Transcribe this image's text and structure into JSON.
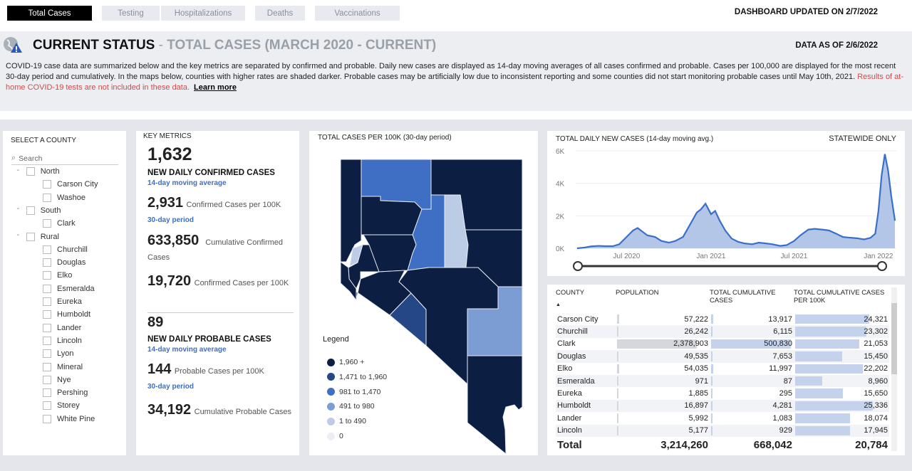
{
  "tabs": [
    {
      "label": "Total Cases",
      "active": true
    },
    {
      "label": "Testing"
    },
    {
      "label": "Hospitalizations"
    },
    {
      "label": "Deaths"
    },
    {
      "label": "Vaccinations"
    }
  ],
  "updated": "DASHBOARD UPDATED ON 2/7/2022",
  "header": {
    "title": "CURRENT STATUS",
    "separator": "-",
    "subtitle": "TOTAL CASES (MARCH 2020 - CURRENT)",
    "data_as_of": "DATA AS OF 2/6/2022",
    "description": "COVID-19 case data are summarized below and the key metrics are separated by confirmed and probable. Daily new cases are displayed as 14-day moving averages of all cases confirmed and probable. Cases per 100,000 are displayed for the most recent 30-day period and cumulatively. In the maps below, counties with higher rates are shaded darker. Probable cases may be artificially low due to inconsistent reporting and some counties did not start monitoring probable cases until May 10th, 2021.",
    "warning": "Results of at-home COVID-19 tests are not included in these data.",
    "learn_more": "Learn more"
  },
  "county_filter": {
    "title": "SELECT A COUNTY",
    "search_placeholder": "Search",
    "groups": [
      {
        "name": "North",
        "counties": [
          "Carson City",
          "Washoe"
        ]
      },
      {
        "name": "South",
        "counties": [
          "Clark"
        ]
      },
      {
        "name": "Rural",
        "counties": [
          "Churchill",
          "Douglas",
          "Elko",
          "Esmeralda",
          "Eureka",
          "Humboldt",
          "Lander",
          "Lincoln",
          "Lyon",
          "Mineral",
          "Nye",
          "Pershing",
          "Storey",
          "White Pine"
        ]
      }
    ]
  },
  "key_metrics": {
    "title": "KEY METRICS",
    "daily_confirmed": "1,632",
    "daily_confirmed_label": "NEW DAILY CONFIRMED CASES",
    "moving_avg": "14-day moving average",
    "confirmed_per100k_30": "2,931",
    "confirmed_per100k_30_label": "Confirmed Cases per 100K",
    "period": "30-day period",
    "cumulative_confirmed": "633,850",
    "cumulative_confirmed_label": "Cumulative Confirmed Cases",
    "cumulative_per100k": "19,720",
    "cumulative_per100k_label": "Confirmed Cases per 100K",
    "daily_probable": "89",
    "daily_probable_label": "NEW DAILY PROBABLE CASES",
    "probable_per100k": "144",
    "probable_per100k_label": "Probable Cases per 100K",
    "cumulative_probable": "34,192",
    "cumulative_probable_label": "Cumulative Probable Cases"
  },
  "map": {
    "title": "TOTAL CASES PER 100K (30-day period)",
    "legend_title": "Legend",
    "legend": [
      {
        "label": "1,960 +",
        "color": "#0c1f42"
      },
      {
        "label": "1,471 to 1,960",
        "color": "#264785"
      },
      {
        "label": "981 to 1,470",
        "color": "#3e6fc4"
      },
      {
        "label": "491 to 980",
        "color": "#7c9dd4"
      },
      {
        "label": "1 to 490",
        "color": "#bccbe6"
      },
      {
        "label": "0",
        "color": "#eceef3"
      }
    ]
  },
  "chart_data": {
    "type": "area",
    "title": "TOTAL DAILY NEW CASES (14-day moving avg.)",
    "note": "STATEWIDE ONLY",
    "xlabel": "",
    "ylabel": "",
    "ylim": [
      0,
      6000
    ],
    "yticks": [
      "0K",
      "2K",
      "4K",
      "6K"
    ],
    "xticks": [
      "Jul 2020",
      "Jan 2021",
      "Jul 2021",
      "Jan 2022"
    ],
    "color": "#3a6fc8",
    "grid": true,
    "x": [
      "2020-03-15",
      "2020-04-01",
      "2020-04-15",
      "2020-05-01",
      "2020-05-15",
      "2020-06-01",
      "2020-06-15",
      "2020-07-01",
      "2020-07-15",
      "2020-07-25",
      "2020-08-01",
      "2020-08-15",
      "2020-09-01",
      "2020-09-15",
      "2020-10-01",
      "2020-10-15",
      "2020-11-01",
      "2020-11-15",
      "2020-12-01",
      "2020-12-10",
      "2020-12-20",
      "2021-01-01",
      "2021-01-10",
      "2021-01-20",
      "2021-02-01",
      "2021-02-15",
      "2021-03-01",
      "2021-03-15",
      "2021-04-01",
      "2021-04-15",
      "2021-05-01",
      "2021-05-15",
      "2021-06-01",
      "2021-06-15",
      "2021-07-01",
      "2021-07-15",
      "2021-08-01",
      "2021-08-15",
      "2021-09-01",
      "2021-09-15",
      "2021-10-01",
      "2021-10-15",
      "2021-11-01",
      "2021-11-15",
      "2021-12-01",
      "2021-12-15",
      "2021-12-25",
      "2022-01-01",
      "2022-01-08",
      "2022-01-15",
      "2022-01-22",
      "2022-01-29",
      "2022-02-06"
    ],
    "values": [
      0,
      50,
      120,
      150,
      130,
      130,
      250,
      700,
      1100,
      1250,
      1100,
      800,
      700,
      450,
      350,
      450,
      700,
      1400,
      2200,
      2400,
      2750,
      2100,
      2300,
      1700,
      1100,
      600,
      400,
      300,
      250,
      350,
      300,
      250,
      150,
      200,
      450,
      800,
      1150,
      1200,
      1150,
      1100,
      900,
      700,
      650,
      620,
      550,
      650,
      900,
      2300,
      4500,
      5800,
      4800,
      3200,
      1700
    ]
  },
  "table": {
    "headers": [
      "COUNTY",
      "POPULATION",
      "TOTAL CUMULATIVE CASES",
      "TOTAL CUMULATIVE CASES PER 100K"
    ],
    "rows": [
      [
        "Carson City",
        "57,222",
        "13,917",
        "24,321"
      ],
      [
        "Churchill",
        "26,242",
        "6,115",
        "23,302"
      ],
      [
        "Clark",
        "2,378,903",
        "500,830",
        "21,053"
      ],
      [
        "Douglas",
        "49,535",
        "7,653",
        "15,450"
      ],
      [
        "Elko",
        "54,035",
        "11,997",
        "22,202"
      ],
      [
        "Esmeralda",
        "971",
        "87",
        "8,960"
      ],
      [
        "Eureka",
        "1,885",
        "295",
        "15,650"
      ],
      [
        "Humboldt",
        "16,897",
        "4,281",
        "25,336"
      ],
      [
        "Lander",
        "5,992",
        "1,083",
        "18,074"
      ],
      [
        "Lincoln",
        "5,177",
        "929",
        "17,945"
      ]
    ],
    "total": [
      "Total",
      "3,214,260",
      "668,042",
      "20,784"
    ]
  }
}
